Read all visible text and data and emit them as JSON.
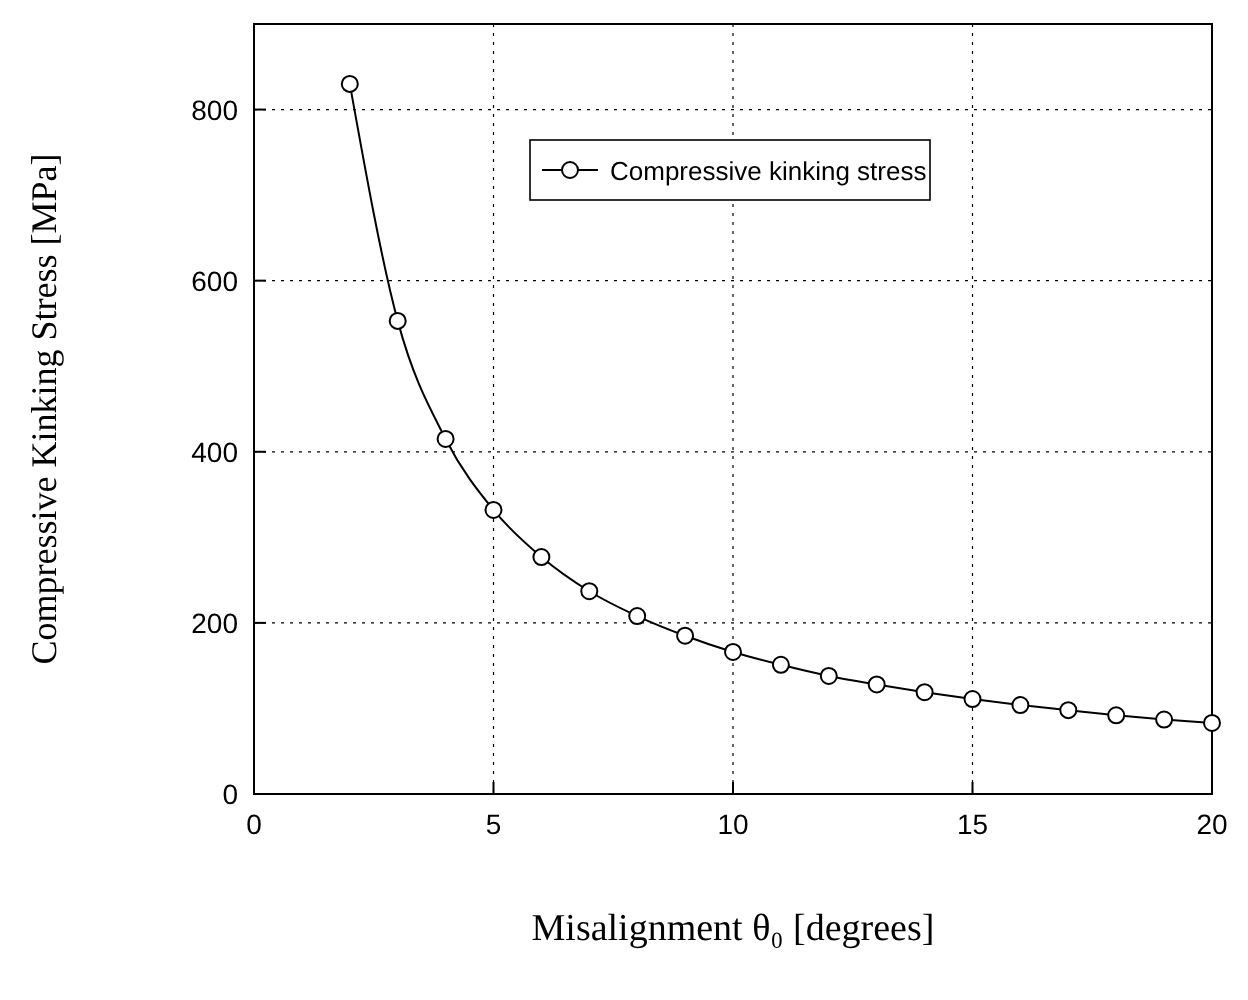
{
  "chart_data": {
    "type": "line",
    "xlabel": "Misalignment θ₀ [degrees]",
    "ylabel": "Compressive  Kinking Stress [MPa]",
    "x": [
      2,
      3,
      4,
      5,
      6,
      7,
      8,
      9,
      10,
      11,
      12,
      13,
      14,
      15,
      16,
      17,
      18,
      19,
      20
    ],
    "series": [
      {
        "name": "Compressive kinking stress",
        "color": "#000000",
        "values": [
          830,
          553,
          415,
          332,
          277,
          237,
          208,
          185,
          166,
          151,
          138,
          128,
          119,
          111,
          104,
          98,
          92,
          87,
          83
        ]
      }
    ],
    "xlim": [
      0,
      20
    ],
    "xticks": [
      0,
      5,
      10,
      15,
      20
    ],
    "ylim": [
      0,
      900
    ],
    "yticks": [
      0,
      200,
      400,
      600,
      800
    ],
    "grid": true,
    "legend": "top",
    "marker": "circle",
    "line_style": "solid"
  }
}
